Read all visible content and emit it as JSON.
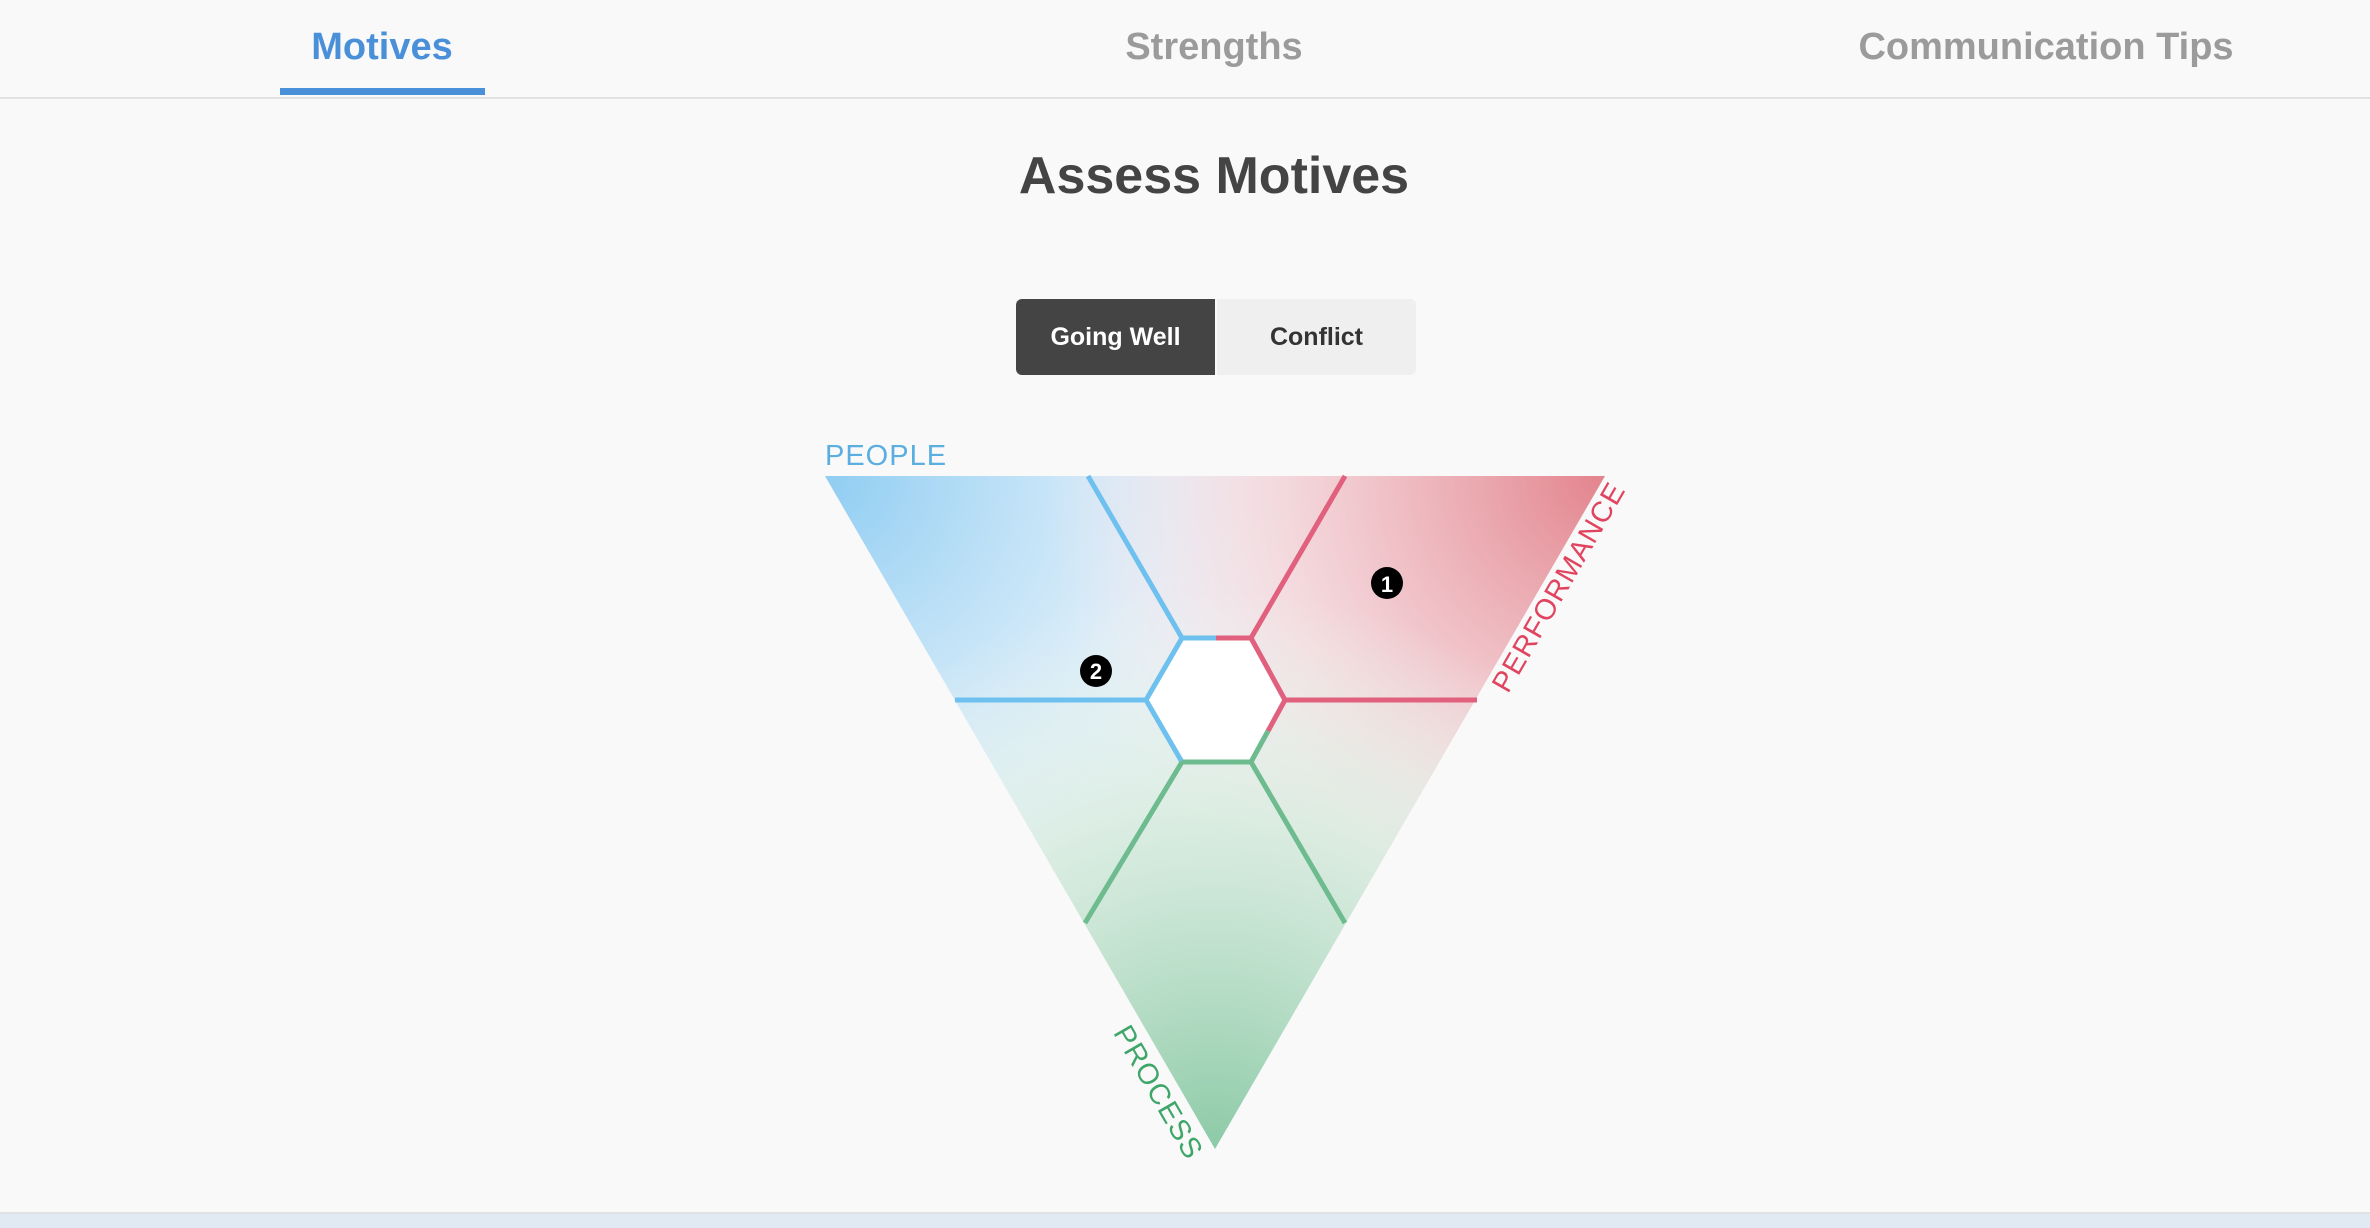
{
  "tabs": [
    {
      "label": "Motives",
      "active": true
    },
    {
      "label": "Strengths",
      "active": false
    },
    {
      "label": "Communication Tips",
      "active": false
    }
  ],
  "page_title": "Assess Motives",
  "toggle": {
    "options": [
      "Going Well",
      "Conflict"
    ],
    "selected": "Going Well"
  },
  "triangle": {
    "labels": {
      "people": "PEOPLE",
      "performance": "PERFORMANCE",
      "process": "PROCESS"
    },
    "colors": {
      "people": "#6ec0ee",
      "performance": "#e0607e",
      "process": "#6dbb8e",
      "accent": "#4a90d9"
    },
    "markers": [
      {
        "label": "1",
        "region": "performance"
      },
      {
        "label": "2",
        "region": "people"
      }
    ]
  }
}
